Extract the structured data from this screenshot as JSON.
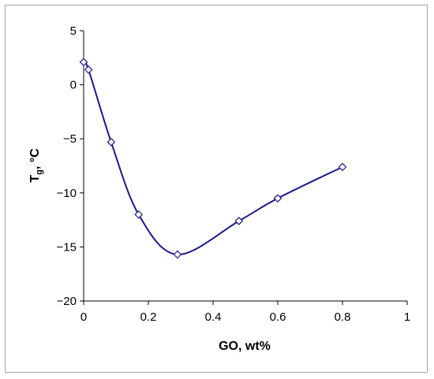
{
  "chart_data": {
    "type": "scatter",
    "title": "",
    "xlabel": "GO, wt%",
    "ylabel_main": "T",
    "ylabel_sub": "g",
    "ylabel_rest": ", °C",
    "xlim": [
      0,
      1
    ],
    "ylim": [
      -20,
      5
    ],
    "x_ticks": [
      0,
      0.2,
      0.4,
      0.6,
      0.8,
      1
    ],
    "x_tick_labels": [
      "0",
      "0.2",
      "0.4",
      "0.6",
      "0.8",
      "1"
    ],
    "y_ticks": [
      5,
      0,
      -5,
      -10,
      -15,
      -20
    ],
    "y_tick_labels": [
      "5",
      "0",
      "−5",
      "−10",
      "−15",
      "−20"
    ],
    "grid": false,
    "legend": "none",
    "series": [
      {
        "marker": "diamond-open",
        "line": "smooth",
        "color": "#1a1a8c",
        "x": [
          0.0,
          0.015,
          0.085,
          0.17,
          0.29,
          0.48,
          0.6,
          0.8
        ],
        "y": [
          2.1,
          1.4,
          -5.3,
          -12.0,
          -15.7,
          -12.6,
          -10.5,
          -7.6
        ]
      }
    ]
  }
}
